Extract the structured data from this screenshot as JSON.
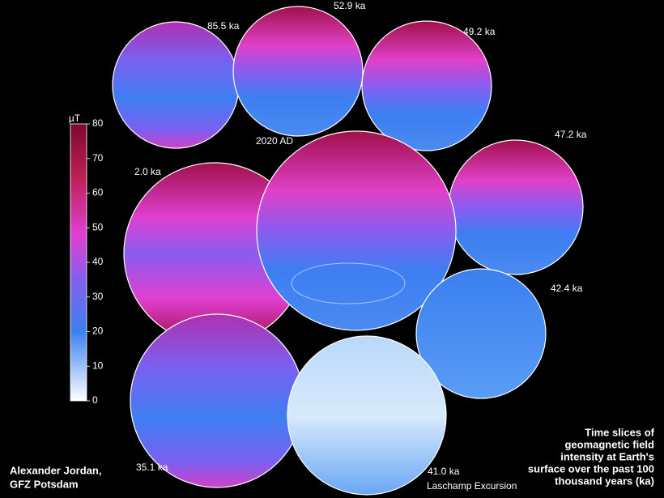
{
  "colorbar": {
    "unit": "µT",
    "lim": [
      0,
      80
    ],
    "ticks": [
      0,
      10,
      20,
      30,
      40,
      50,
      60,
      70,
      80
    ]
  },
  "globes": [
    {
      "label": "85.5 ka"
    },
    {
      "label": "52.9 ka"
    },
    {
      "label": "49.2 ka"
    },
    {
      "label": "47.2 ka"
    },
    {
      "label": "2.0 ka"
    },
    {
      "label": "2020 AD"
    },
    {
      "label": "42.4 ka"
    },
    {
      "label": "35.1 ka"
    },
    {
      "label": "41.0 ka",
      "note": "Laschamp Excursion"
    }
  ],
  "caption": [
    "Time slices of",
    "geomagnetic field",
    "intensity at Earth's",
    "surface over the past 100",
    "thousand years (ka)"
  ],
  "credit": [
    "Alexander Jordan,",
    "GFZ Potsdam"
  ]
}
